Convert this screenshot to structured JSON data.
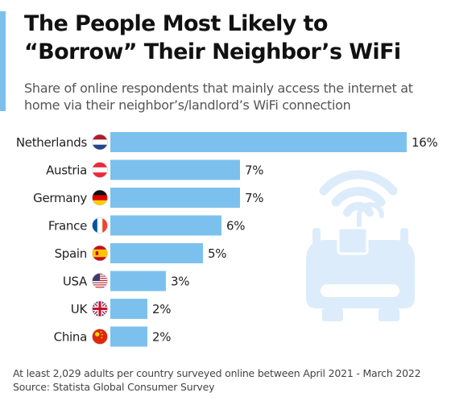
{
  "chart_data": {
    "type": "bar",
    "orientation": "horizontal",
    "title": "The People Most Likely to “Borrow” Their Neighbor’s WiFi",
    "subtitle": "Share of online respondents that mainly access the internet at home via their neighbor’s/landlord’s WiFi connection",
    "categories": [
      "Netherlands",
      "Austria",
      "Germany",
      "France",
      "Spain",
      "USA",
      "UK",
      "China"
    ],
    "values": [
      16,
      7,
      7,
      6,
      5,
      3,
      2,
      2
    ],
    "value_labels": [
      "16%",
      "7%",
      "7%",
      "6%",
      "5%",
      "3%",
      "2%",
      "2%"
    ],
    "flags": [
      "netherlands-flag",
      "austria-flag",
      "germany-flag",
      "france-flag",
      "spain-flag",
      "usa-flag",
      "uk-flag",
      "china-flag"
    ],
    "xlim": [
      0,
      16
    ],
    "grid": false,
    "bar_color": "#7cc1ee",
    "illustration": "wifi-router-unlocked-padlock",
    "illustration_color": "#dcecfa"
  },
  "footer": {
    "note": "At least 2,029 adults per country surveyed online between April 2021 - March 2022",
    "source": "Source: Statista Global Consumer Survey"
  }
}
